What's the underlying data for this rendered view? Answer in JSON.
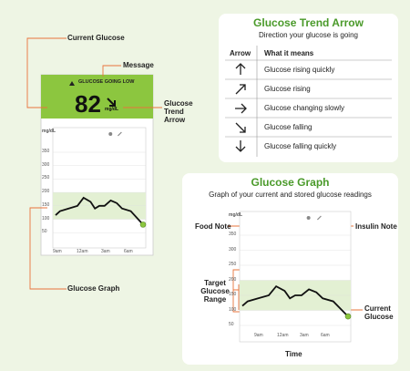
{
  "left_screen": {
    "message": "GLUCOSE GOING LOW",
    "glucose": "82",
    "unit": "mg/dL",
    "graph": {
      "y_unit": "mg/dL",
      "yticks": [
        "350",
        "300",
        "250",
        "200",
        "150",
        "100",
        "50"
      ],
      "xticks": [
        "9am",
        "12am",
        "3am",
        "6am"
      ]
    }
  },
  "callouts": {
    "current_glucose": "Current Glucose",
    "message": "Message",
    "trend_arrow": "Glucose Trend Arrow",
    "graph": "Glucose Graph"
  },
  "trend_card": {
    "title": "Glucose Trend Arrow",
    "subtitle": "Direction your glucose is going",
    "headers": [
      "Arrow",
      "What it means"
    ],
    "rows": [
      "Glucose rising quickly",
      "Glucose rising",
      "Glucose changing slowly",
      "Glucose falling",
      "Glucose falling quickly"
    ]
  },
  "graph_card": {
    "title": "Glucose Graph",
    "subtitle": "Graph of your current and stored glucose readings",
    "graph": {
      "y_unit": "mg/dL",
      "yticks": [
        "350",
        "300",
        "250",
        "200",
        "150",
        "100",
        "50"
      ],
      "xticks": [
        "9am",
        "12am",
        "3am",
        "6am"
      ]
    },
    "callouts": {
      "food_note": "Food Note",
      "insulin_note": "Insulin Note",
      "target_range": "Target Glucose Range",
      "current_glucose": "Current Glucose"
    },
    "x_label": "Time"
  }
}
